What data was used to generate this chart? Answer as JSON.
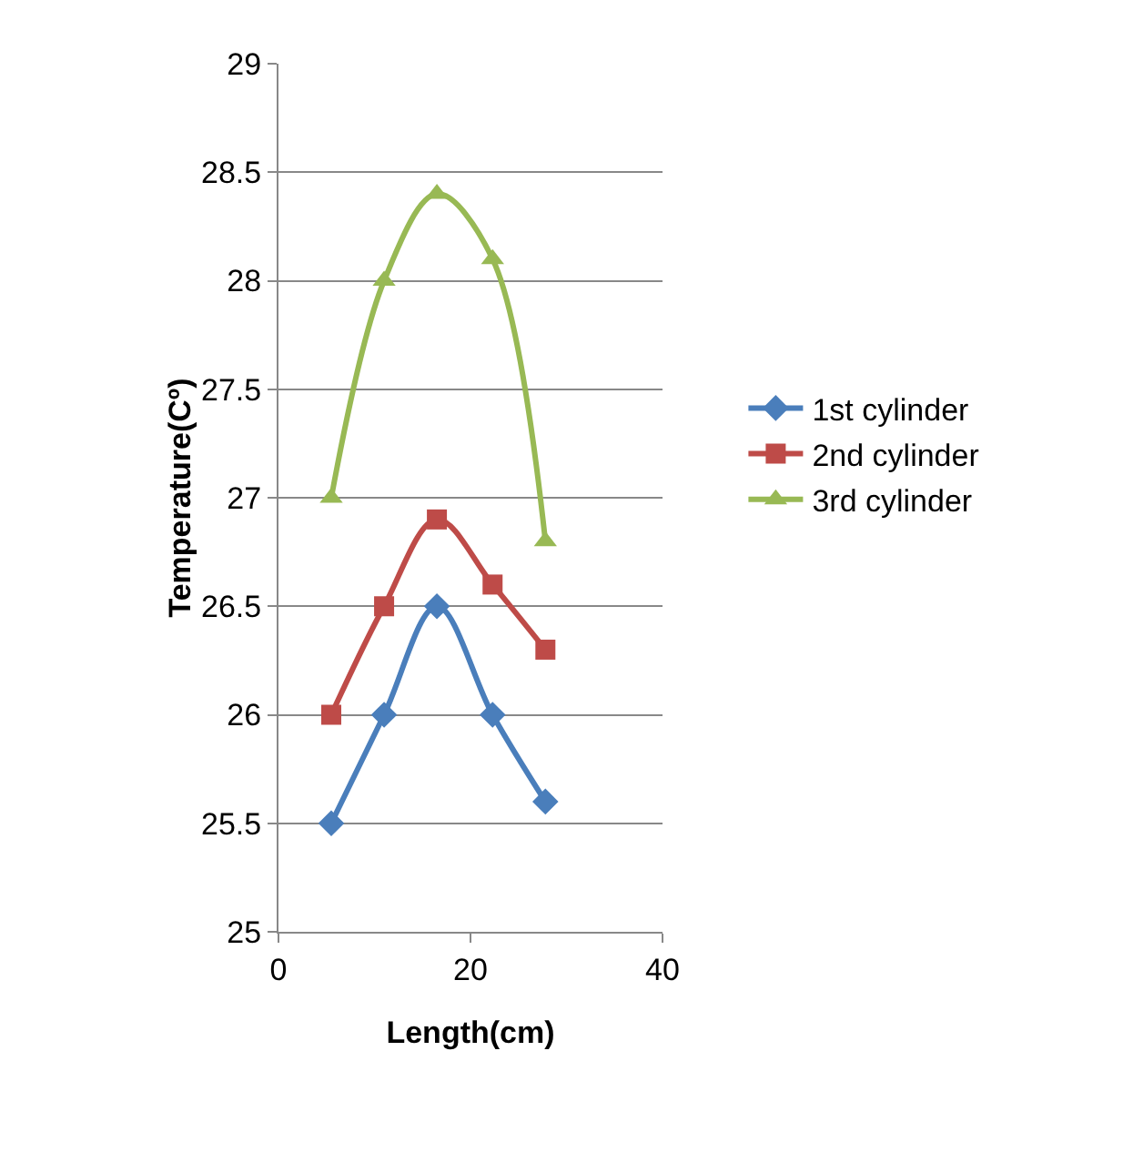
{
  "chart_data": {
    "type": "line",
    "xlabel": "Length(cm)",
    "ylabel": "Temperature(Cº)",
    "x": [
      5.5,
      11,
      16.5,
      22.3,
      27.8
    ],
    "series": [
      {
        "name": "1st cylinder",
        "color": "#4a7ebb",
        "marker": "diamond",
        "values": [
          25.5,
          26,
          26.5,
          26,
          25.6
        ]
      },
      {
        "name": "2nd cylinder",
        "color": "#be4b48",
        "marker": "square",
        "values": [
          26,
          26.5,
          26.9,
          26.6,
          26.3
        ]
      },
      {
        "name": "3rd cylinder",
        "color": "#98b954",
        "marker": "triangle",
        "values": [
          27,
          28,
          28.4,
          28.1,
          26.8
        ]
      }
    ],
    "xlim": [
      0,
      40
    ],
    "xticks": [
      0,
      20,
      40
    ],
    "ylim": [
      25,
      29
    ],
    "yticks": [
      25,
      25.5,
      26,
      26.5,
      27,
      27.5,
      28,
      28.5,
      29
    ],
    "grid": "y",
    "legend": "right"
  }
}
